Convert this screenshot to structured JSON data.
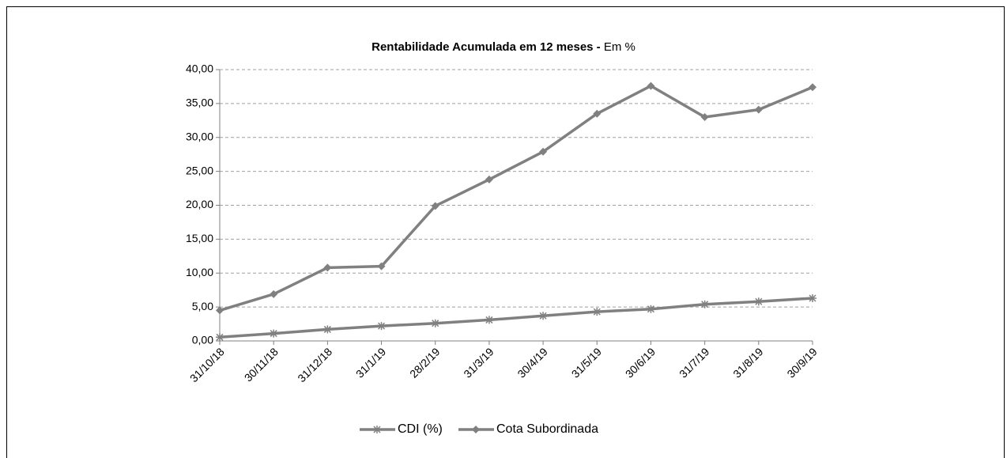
{
  "chart_data": {
    "type": "line",
    "title": "Rentabilidade Acumulada em 12 meses -",
    "subtitle": "Em %",
    "categories": [
      "31/10/18",
      "30/11/18",
      "31/12/18",
      "31/1/19",
      "28/2/19",
      "31/3/19",
      "30/4/19",
      "31/5/19",
      "30/6/19",
      "31/7/19",
      "31/8/19",
      "30/9/19"
    ],
    "series": [
      {
        "name": "CDI (%)",
        "color": "#808080",
        "marker": "asterisk",
        "values": [
          0.55,
          1.1,
          1.7,
          2.2,
          2.6,
          3.1,
          3.7,
          4.3,
          4.7,
          5.4,
          5.8,
          6.3
        ]
      },
      {
        "name": "Cota Subordinada",
        "color": "#808080",
        "marker": "diamond",
        "values": [
          4.5,
          6.9,
          10.8,
          11.0,
          19.9,
          23.8,
          27.9,
          33.5,
          37.6,
          33.0,
          34.1,
          37.4
        ]
      }
    ],
    "ylim": [
      0,
      40
    ],
    "yticks": [
      {
        "value": 0,
        "label": "0,00"
      },
      {
        "value": 5,
        "label": "5,00"
      },
      {
        "value": 10,
        "label": "10,00"
      },
      {
        "value": 15,
        "label": "15,00"
      },
      {
        "value": 20,
        "label": "20,00"
      },
      {
        "value": 25,
        "label": "25,00"
      },
      {
        "value": 30,
        "label": "30,00"
      },
      {
        "value": 35,
        "label": "35,00"
      },
      {
        "value": 40,
        "label": "40,00"
      }
    ],
    "grid": true,
    "legend": "bottom"
  }
}
